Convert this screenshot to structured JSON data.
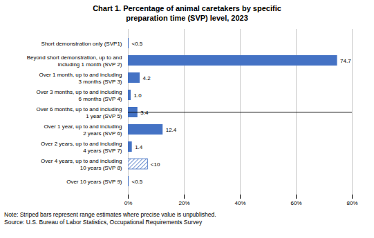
{
  "chart_data": {
    "type": "bar",
    "orientation": "horizontal",
    "title": "Chart 1. Percentage of animal caretakers by specific\npreparation time (SVP) level, 2023",
    "categories": [
      "Short demonstration only (SVP1)",
      "Beyond short demonstration, up to and\nincluding 1 month (SVP 2)",
      "Over 1 month, up to and including\n3 months (SVP 3)",
      "Over 3 months, up to and including\n6 months (SVP 4)",
      "Over 6 months, up to and including\n1 year (SVP 5)",
      "Over 1 year, up to and including\n2 years (SVP 6)",
      "Over 2 years, up to and including\n4 years (SVP 7)",
      "Over 4 years, up to and including\n10 years (SVP 8)",
      "Over 10 years (SVP 9)"
    ],
    "values": [
      0.25,
      74.7,
      4.2,
      1.0,
      3.4,
      12.4,
      1.4,
      7.0,
      0.25
    ],
    "value_labels": [
      "<0.5",
      "74.7",
      "4.2",
      "1.0",
      "3.4",
      "12.4",
      "1.4",
      "<10",
      "<0.5"
    ],
    "data_labels": true,
    "color": "#4472c4",
    "colors": [
      "#4472c4",
      "#4472c4",
      "#4472c4",
      "#4472c4",
      "#4472c4",
      "#4472c4",
      "#4472c4",
      "#ffffff",
      "#4472c4"
    ],
    "xlim": [
      0,
      80
    ],
    "xticks": [
      {
        "value": 0,
        "label": "0%"
      },
      {
        "value": 20,
        "label": "20%"
      },
      {
        "value": 40,
        "label": "40%"
      },
      {
        "value": 60,
        "label": "60%"
      },
      {
        "value": 80,
        "label": "80%"
      }
    ],
    "grid": true,
    "annotations": [
      "Note: Striped bars represent range estimates where precise value is unpublished.",
      "Source: U.S. Bureau of Labor Statistics, Occupational Requirements Survey"
    ]
  }
}
